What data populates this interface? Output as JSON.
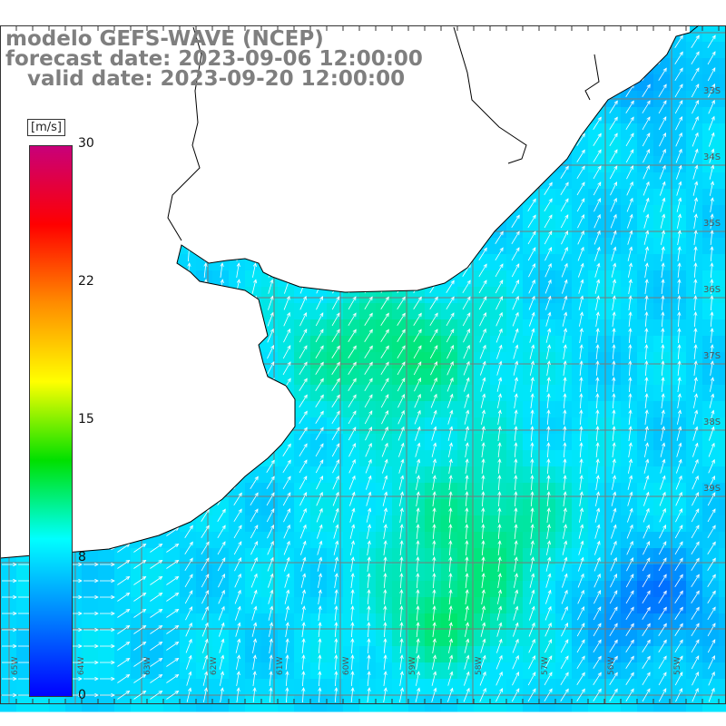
{
  "title": {
    "line1": "modelo GEFS-WAVE (NCEP)",
    "line2": "forecast date: 2023-09-06 12:00:00",
    "line3": "   valid date: 2023-09-20 12:00:00"
  },
  "colorbar": {
    "unit": "[m/s]",
    "min": 0,
    "max": 30,
    "tick_labels": [
      "30",
      "22",
      "15",
      "8",
      "0"
    ],
    "tick_values": [
      30,
      22,
      15,
      8,
      0
    ],
    "gradient_colors": [
      "#c8007a",
      "#ff0000",
      "#ff8c00",
      "#ffff00",
      "#00e000",
      "#00ffff",
      "#0080ff",
      "#0000ff"
    ]
  },
  "latitude_labels": [
    "33S",
    "34S",
    "35S",
    "36S",
    "37S",
    "38S",
    "39S"
  ],
  "longitude_labels": [
    "65W",
    "64W",
    "63W",
    "62W",
    "61W",
    "60W",
    "59W",
    "58W",
    "57W",
    "56W",
    "55W"
  ],
  "legend_colors": {
    "land": "#ffffff",
    "coast": "#000000",
    "grid": "#7a7a7a",
    "vector": "#ffffff"
  }
}
